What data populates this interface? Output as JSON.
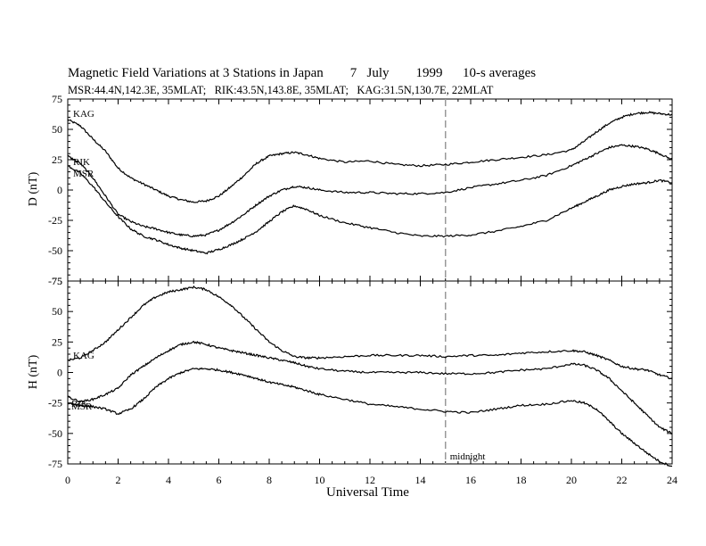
{
  "title": "Magnetic Field Variations at 3 Stations in Japan        7   July        1999      10-s averages",
  "subtitle": "MSR:44.4N,142.3E, 35MLAT;   RIK:43.5N,143.8E, 35MLAT;   KAG:31.5N,130.7E, 22MLAT",
  "xlabel": "Universal Time",
  "midnight_label": "midnight",
  "chart_data": [
    {
      "type": "line",
      "ylabel": "D (nT)",
      "xlim": [
        0,
        24
      ],
      "ylim": [
        -75,
        75
      ],
      "yticks": [
        75,
        50,
        25,
        0,
        -25,
        -50,
        -75
      ],
      "xticks": [
        0,
        2,
        4,
        6,
        8,
        10,
        12,
        14,
        16,
        18,
        20,
        22,
        24
      ],
      "vline": {
        "x": 15,
        "label": "midnight",
        "style": "dashed",
        "color": "#999999"
      },
      "series": [
        {
          "name": "KAG",
          "x": [
            0,
            0.5,
            1,
            1.5,
            2,
            2.5,
            3,
            3.5,
            4,
            4.5,
            5,
            5.5,
            6,
            6.5,
            7,
            7.5,
            8,
            8.5,
            9,
            9.5,
            10,
            11,
            12,
            13,
            14,
            15,
            16,
            17,
            18,
            19,
            20,
            20.5,
            21,
            21.5,
            22,
            22.5,
            23,
            23.5,
            24
          ],
          "values": [
            58,
            53,
            42,
            32,
            18,
            10,
            5,
            0,
            -5,
            -8,
            -10,
            -9,
            -5,
            3,
            12,
            22,
            28,
            30,
            31,
            29,
            26,
            23,
            24,
            21,
            20,
            21,
            23,
            25,
            27,
            29,
            33,
            40,
            48,
            55,
            60,
            63,
            64,
            63,
            62
          ]
        },
        {
          "name": "RIK",
          "x": [
            0,
            0.5,
            1,
            1.5,
            2,
            2.5,
            3,
            3.5,
            4,
            4.5,
            5,
            5.5,
            6,
            6.5,
            7,
            7.5,
            8,
            8.5,
            9,
            9.5,
            10,
            11,
            12,
            13,
            14,
            15,
            16,
            17,
            18,
            19,
            20,
            20.5,
            21,
            21.5,
            22,
            22.5,
            23,
            23.5,
            24
          ],
          "values": [
            28,
            22,
            10,
            -5,
            -20,
            -26,
            -30,
            -32,
            -35,
            -37,
            -38,
            -37,
            -33,
            -27,
            -20,
            -12,
            -5,
            0,
            3,
            2,
            0,
            -2,
            -2,
            -3,
            -3,
            -2,
            2,
            5,
            8,
            12,
            20,
            25,
            30,
            35,
            37,
            36,
            34,
            30,
            25
          ]
        },
        {
          "name": "MSR",
          "x": [
            0,
            0.5,
            1,
            1.5,
            2,
            2.5,
            3,
            3.5,
            4,
            4.5,
            5,
            5.5,
            6,
            6.5,
            7,
            7.5,
            8,
            8.5,
            9,
            9.5,
            10,
            11,
            12,
            13,
            14,
            15,
            16,
            17,
            18,
            19,
            20,
            20.5,
            21,
            21.5,
            22,
            22.5,
            23,
            23.5,
            24
          ],
          "values": [
            20,
            14,
            3,
            -10,
            -22,
            -32,
            -38,
            -41,
            -45,
            -48,
            -50,
            -52,
            -49,
            -45,
            -40,
            -34,
            -26,
            -18,
            -13,
            -16,
            -21,
            -27,
            -31,
            -35,
            -38,
            -38,
            -37,
            -34,
            -30,
            -25,
            -15,
            -10,
            -5,
            0,
            3,
            5,
            6,
            8,
            6
          ]
        }
      ]
    },
    {
      "type": "line",
      "ylabel": "H (nT)",
      "xlim": [
        0,
        24
      ],
      "ylim": [
        -75,
        75
      ],
      "yticks": [
        75,
        50,
        25,
        0,
        -25,
        -50,
        -75
      ],
      "xticks": [
        0,
        2,
        4,
        6,
        8,
        10,
        12,
        14,
        16,
        18,
        20,
        22,
        24
      ],
      "vline": {
        "x": 15,
        "label": "midnight",
        "style": "dashed",
        "color": "#999999"
      },
      "series": [
        {
          "name": "KAG",
          "x": [
            0,
            0.5,
            1,
            1.5,
            2,
            2.5,
            3,
            3.5,
            4,
            4.5,
            5,
            5.5,
            6,
            6.5,
            7,
            7.5,
            8,
            8.5,
            9,
            9.5,
            10,
            11,
            12,
            13,
            14,
            15,
            16,
            17,
            18,
            19,
            20,
            20.5,
            21,
            21.5,
            22,
            22.5,
            23,
            23.5,
            24
          ],
          "values": [
            10,
            12,
            18,
            25,
            35,
            45,
            55,
            62,
            66,
            68,
            70,
            68,
            62,
            55,
            45,
            35,
            25,
            18,
            13,
            12,
            12,
            13,
            14,
            14,
            14,
            13,
            14,
            14,
            16,
            17,
            18,
            17,
            14,
            10,
            5,
            3,
            2,
            -2,
            -5
          ]
        },
        {
          "name": "RIK",
          "x": [
            0,
            0.5,
            1,
            1.5,
            2,
            2.5,
            3,
            3.5,
            4,
            4.5,
            5,
            5.5,
            6,
            6.5,
            7,
            7.5,
            8,
            8.5,
            9,
            9.5,
            10,
            11,
            12,
            13,
            14,
            15,
            16,
            17,
            18,
            19,
            20,
            20.5,
            21,
            21.5,
            22,
            22.5,
            23,
            23.5,
            24
          ],
          "values": [
            -20,
            -24,
            -22,
            -18,
            -13,
            -2,
            5,
            12,
            18,
            23,
            25,
            23,
            20,
            18,
            16,
            14,
            12,
            10,
            8,
            5,
            3,
            1,
            0,
            0,
            0,
            -1,
            -1,
            0,
            2,
            3,
            7,
            6,
            2,
            -5,
            -15,
            -25,
            -35,
            -45,
            -50
          ]
        },
        {
          "name": "MSR",
          "x": [
            0,
            0.5,
            1,
            1.5,
            2,
            2.5,
            3,
            3.5,
            4,
            4.5,
            5,
            5.5,
            6,
            6.5,
            7,
            7.5,
            8,
            8.5,
            9,
            9.5,
            10,
            11,
            12,
            13,
            14,
            15,
            16,
            17,
            18,
            19,
            20,
            20.5,
            21,
            21.5,
            22,
            22.5,
            23,
            23.5,
            24
          ],
          "values": [
            -25,
            -27,
            -28,
            -30,
            -34,
            -30,
            -22,
            -12,
            -5,
            0,
            3,
            3,
            2,
            0,
            -2,
            -5,
            -8,
            -10,
            -12,
            -15,
            -18,
            -22,
            -26,
            -28,
            -30,
            -32,
            -33,
            -30,
            -27,
            -26,
            -23,
            -25,
            -30,
            -40,
            -50,
            -58,
            -66,
            -73,
            -77
          ]
        }
      ]
    }
  ]
}
